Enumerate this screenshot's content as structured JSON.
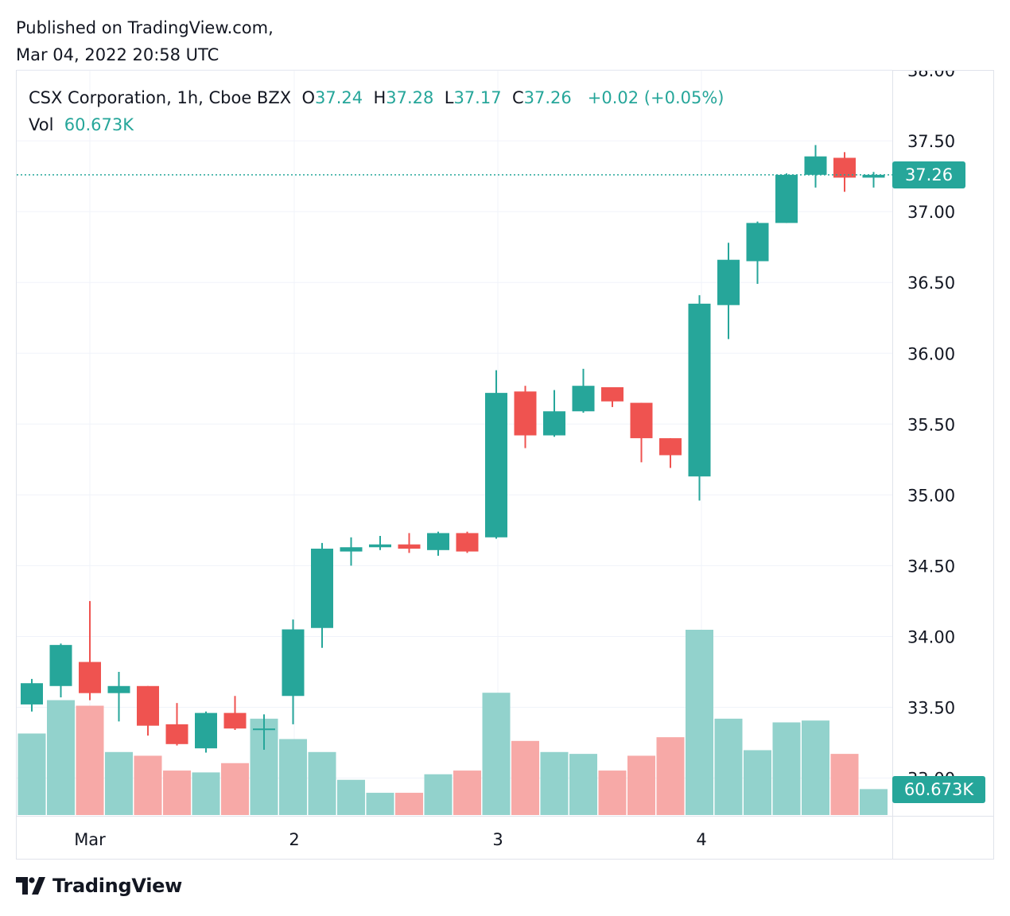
{
  "header": {
    "published_line1": "Published on TradingView.com,",
    "published_line2": "Mar 04, 2022 20:58 UTC"
  },
  "legend": {
    "symbol": "CSX Corporation, 1h, Cboe BZX",
    "o_label": "O",
    "o_value": "37.24",
    "h_label": "H",
    "h_value": "37.28",
    "l_label": "L",
    "l_value": "37.17",
    "c_label": "C",
    "c_value": "37.26",
    "change": "+0.02 (+0.05%)",
    "vol_label": "Vol",
    "vol_value": "60.673K"
  },
  "price_tag": "37.26",
  "volume_tag": "60.673K",
  "brand": {
    "name": "TradingView"
  },
  "colors": {
    "up": "#26a69a",
    "down": "#ef5350",
    "up_volume": "#92d2cc",
    "down_volume": "#f7a9a7",
    "grid": "#f0f3fa"
  },
  "chart_data": {
    "type": "candlestick",
    "y_ticks": [
      "33.00",
      "33.50",
      "34.00",
      "34.50",
      "35.00",
      "35.50",
      "36.00",
      "36.50",
      "37.00",
      "37.50",
      "38.00"
    ],
    "ylim": [
      32.85,
      38.01
    ],
    "x_labels": [
      {
        "label": "Mar",
        "index": 2
      },
      {
        "label": "2",
        "index": 9
      },
      {
        "label": "3",
        "index": 16
      },
      {
        "label": "4",
        "index": 23
      }
    ],
    "last_price": 37.26,
    "candles": [
      {
        "o": 33.52,
        "h": 33.7,
        "l": 33.47,
        "c": 33.67,
        "vol": 0.44
      },
      {
        "o": 33.65,
        "h": 33.95,
        "l": 33.57,
        "c": 33.94,
        "vol": 0.62
      },
      {
        "o": 33.82,
        "h": 34.25,
        "l": 33.55,
        "c": 33.6,
        "vol": 0.59
      },
      {
        "o": 33.6,
        "h": 33.75,
        "l": 33.4,
        "c": 33.65,
        "vol": 0.34
      },
      {
        "o": 33.65,
        "h": 33.65,
        "l": 33.3,
        "c": 33.37,
        "vol": 0.32
      },
      {
        "o": 33.38,
        "h": 33.53,
        "l": 33.23,
        "c": 33.24,
        "vol": 0.24
      },
      {
        "o": 33.21,
        "h": 33.47,
        "l": 33.18,
        "c": 33.46,
        "vol": 0.23
      },
      {
        "o": 33.46,
        "h": 33.58,
        "l": 33.34,
        "c": 33.35,
        "vol": 0.28
      },
      {
        "o": 33.34,
        "h": 33.45,
        "l": 33.2,
        "c": 33.35,
        "vol": 0.52
      },
      {
        "o": 33.58,
        "h": 34.12,
        "l": 33.38,
        "c": 34.05,
        "vol": 0.41
      },
      {
        "o": 34.06,
        "h": 34.66,
        "l": 33.92,
        "c": 34.62,
        "vol": 0.34
      },
      {
        "o": 34.6,
        "h": 34.7,
        "l": 34.5,
        "c": 34.63,
        "vol": 0.19
      },
      {
        "o": 34.63,
        "h": 34.71,
        "l": 34.61,
        "c": 34.65,
        "vol": 0.12
      },
      {
        "o": 34.65,
        "h": 34.73,
        "l": 34.59,
        "c": 34.62,
        "vol": 0.12
      },
      {
        "o": 34.61,
        "h": 34.74,
        "l": 34.57,
        "c": 34.73,
        "vol": 0.22
      },
      {
        "o": 34.73,
        "h": 34.74,
        "l": 34.59,
        "c": 34.6,
        "vol": 0.24
      },
      {
        "o": 34.7,
        "h": 35.88,
        "l": 34.69,
        "c": 35.72,
        "vol": 0.66
      },
      {
        "o": 35.73,
        "h": 35.77,
        "l": 35.33,
        "c": 35.42,
        "vol": 0.4
      },
      {
        "o": 35.42,
        "h": 35.74,
        "l": 35.41,
        "c": 35.59,
        "vol": 0.34
      },
      {
        "o": 35.59,
        "h": 35.89,
        "l": 35.58,
        "c": 35.77,
        "vol": 0.33
      },
      {
        "o": 35.76,
        "h": 35.76,
        "l": 35.62,
        "c": 35.66,
        "vol": 0.24
      },
      {
        "o": 35.65,
        "h": 35.65,
        "l": 35.23,
        "c": 35.4,
        "vol": 0.32
      },
      {
        "o": 35.4,
        "h": 35.4,
        "l": 35.19,
        "c": 35.28,
        "vol": 0.42
      },
      {
        "o": 35.13,
        "h": 36.41,
        "l": 34.96,
        "c": 36.35,
        "vol": 1.0
      },
      {
        "o": 36.34,
        "h": 36.78,
        "l": 36.1,
        "c": 36.66,
        "vol": 0.52
      },
      {
        "o": 36.65,
        "h": 36.93,
        "l": 36.49,
        "c": 36.92,
        "vol": 0.35
      },
      {
        "o": 36.92,
        "h": 37.27,
        "l": 36.92,
        "c": 37.26,
        "vol": 0.5
      },
      {
        "o": 37.26,
        "h": 37.47,
        "l": 37.17,
        "c": 37.39,
        "vol": 0.51
      },
      {
        "o": 37.38,
        "h": 37.42,
        "l": 37.14,
        "c": 37.24,
        "vol": 0.33
      },
      {
        "o": 37.24,
        "h": 37.28,
        "l": 37.17,
        "c": 37.26,
        "vol": 0.14
      }
    ]
  }
}
